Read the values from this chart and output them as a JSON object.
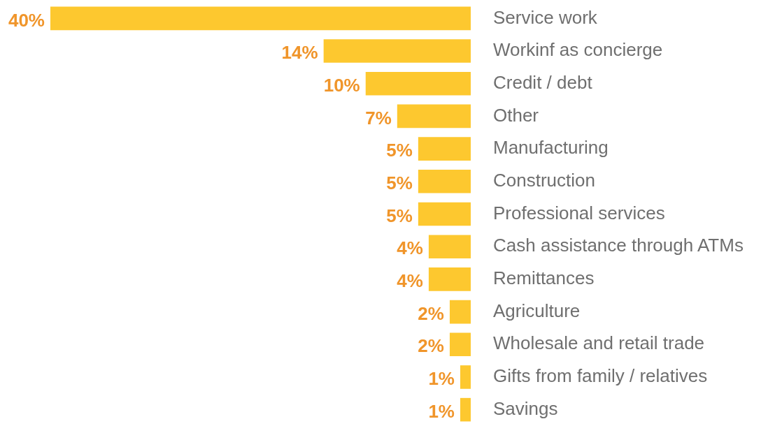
{
  "chart_data": {
    "type": "bar",
    "orientation": "horizontal",
    "categories": [
      "Service work",
      "Workinf as concierge",
      "Credit / debt",
      "Other",
      "Manufacturing",
      "Construction",
      "Professional services",
      "Cash assistance through ATMs",
      "Remittances",
      "Agriculture",
      "Wholesale and retail trade",
      "Gifts from family / relatives",
      "Savings"
    ],
    "series": [
      {
        "color": "#fdc82f",
        "values": [
          40,
          14,
          10,
          7,
          5,
          5,
          5,
          4,
          4,
          2,
          2,
          1,
          1
        ],
        "value_labels": [
          "40%",
          "14%",
          "10%",
          "7%",
          "5%",
          "5%",
          "5%",
          "4%",
          "4%",
          "2%",
          "2%",
          "1%",
          "1%"
        ]
      }
    ],
    "tick_labels": "y"
  }
}
